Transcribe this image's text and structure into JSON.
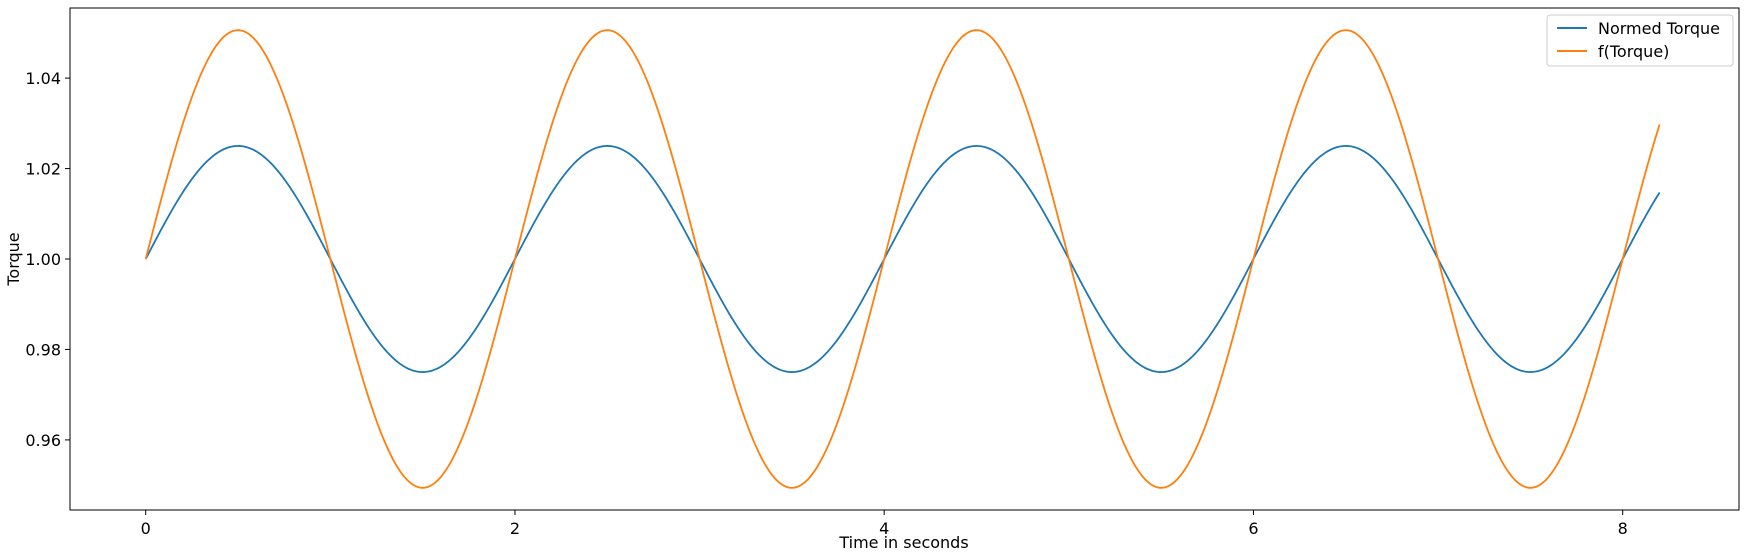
{
  "chart_data": {
    "type": "line",
    "xlabel": "Time in seconds",
    "ylabel": "Torque",
    "xlim": [
      -0.41,
      8.63
    ],
    "ylim": [
      0.9445,
      1.0555
    ],
    "xticks": [
      0,
      2,
      4,
      6,
      8
    ],
    "xtick_labels": [
      "0",
      "2",
      "4",
      "6",
      "8"
    ],
    "yticks": [
      0.96,
      0.98,
      1.0,
      1.02,
      1.04
    ],
    "ytick_labels": [
      "0.96",
      "0.98",
      "1.00",
      "1.02",
      "1.04"
    ],
    "grid": false,
    "legend_position": "top-right",
    "x": [
      0.0,
      0.25,
      0.5,
      0.75,
      1.0,
      1.25,
      1.5,
      1.75,
      2.0,
      2.25,
      2.5,
      2.75,
      3.0,
      3.25,
      3.5,
      3.75,
      4.0,
      4.25,
      4.5,
      4.75,
      5.0,
      5.25,
      5.5,
      5.75,
      6.0,
      6.25,
      6.5,
      6.75,
      7.0,
      7.25,
      7.5,
      7.75,
      8.0,
      8.2
    ],
    "series": [
      {
        "name": "Normed Torque",
        "color": "#1f77b4",
        "values": [
          1.0,
          1.0177,
          1.025,
          1.0177,
          1.0,
          0.9823,
          0.975,
          0.9823,
          1.0,
          1.0177,
          1.025,
          1.0177,
          1.0,
          0.9823,
          0.975,
          0.9823,
          1.0,
          1.0177,
          1.025,
          1.0177,
          1.0,
          0.9823,
          0.975,
          0.9823,
          1.0,
          1.0177,
          1.025,
          1.0177,
          1.0,
          0.9823,
          0.975,
          0.9823,
          1.0,
          1.0147
        ]
      },
      {
        "name": "f(Torque)",
        "color": "#ff7f0e",
        "values": [
          1.0,
          1.0357,
          1.0506,
          1.0357,
          1.0,
          0.9643,
          0.9506,
          0.9643,
          1.0,
          1.0357,
          1.0506,
          1.0357,
          1.0,
          0.9643,
          0.9506,
          0.9643,
          1.0,
          1.0357,
          1.0506,
          1.0357,
          1.0,
          0.9643,
          0.9506,
          0.9643,
          1.0,
          1.0357,
          1.0506,
          1.0357,
          1.0,
          0.9643,
          0.9506,
          0.9643,
          1.0,
          1.0295
        ]
      }
    ]
  }
}
